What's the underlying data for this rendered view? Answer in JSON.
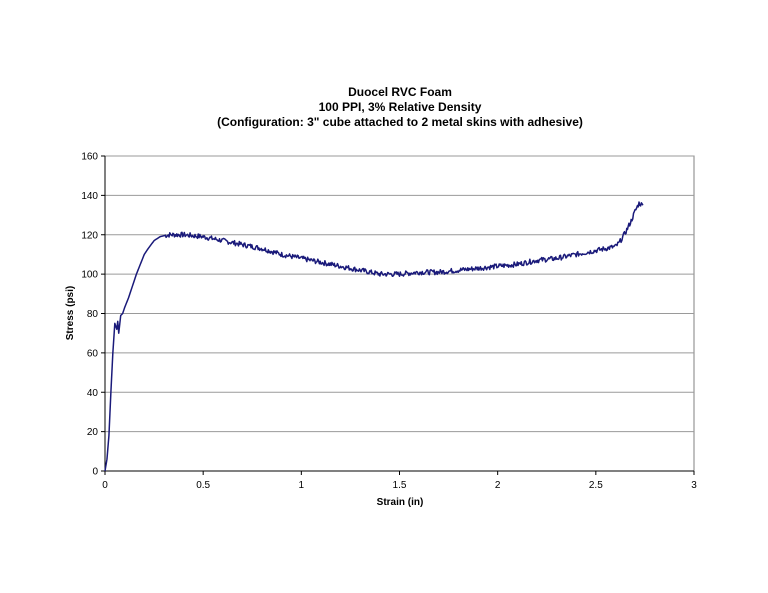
{
  "chart_data": {
    "type": "line",
    "title_lines": [
      "Duocel RVC Foam",
      "100 PPI, 3% Relative Density",
      "(Configuration: 3\" cube attached to 2 metal skins with adhesive)"
    ],
    "xlabel": "Strain (in)",
    "ylabel": "Stress (psi)",
    "xlim": [
      0,
      3
    ],
    "ylim": [
      0,
      160
    ],
    "x_ticks": [
      0,
      0.5,
      1,
      1.5,
      2,
      2.5,
      3
    ],
    "x_tick_labels": [
      "0",
      "0.5",
      "1",
      "1.5",
      "2",
      "2.5",
      "3"
    ],
    "y_ticks": [
      0,
      20,
      40,
      60,
      80,
      100,
      120,
      140,
      160
    ],
    "y_tick_labels": [
      "0",
      "20",
      "40",
      "60",
      "80",
      "100",
      "120",
      "140",
      "160"
    ],
    "grid": "horizontal",
    "line_color": "#1a1a7a",
    "series": [
      {
        "x": [
          0,
          0.01,
          0.02,
          0.03,
          0.04,
          0.05,
          0.06,
          0.065,
          0.07,
          0.08,
          0.09,
          0.1,
          0.12,
          0.14,
          0.16,
          0.18,
          0.2,
          0.22,
          0.25,
          0.28,
          0.3,
          0.33,
          0.35,
          0.4,
          0.45,
          0.5,
          0.55,
          0.6,
          0.7,
          0.8,
          0.9,
          1.0,
          1.1,
          1.2,
          1.3,
          1.4,
          1.5,
          1.6,
          1.7,
          1.8,
          1.9,
          2.0,
          2.1,
          2.2,
          2.3,
          2.4,
          2.5,
          2.55,
          2.6,
          2.62,
          2.65,
          2.68,
          2.7,
          2.72,
          2.74
        ],
        "y": [
          0,
          6,
          18,
          40,
          60,
          75,
          72,
          76,
          70,
          79,
          80,
          83,
          88,
          94,
          100,
          105,
          110,
          113,
          117,
          119,
          119.5,
          120,
          120,
          120,
          119.5,
          119,
          118,
          117,
          115,
          113,
          110,
          108,
          106,
          104,
          102,
          100,
          100,
          101,
          101,
          102,
          103,
          104,
          105,
          107,
          108,
          110,
          112,
          113,
          114,
          116,
          121,
          127,
          132,
          136,
          135
        ]
      }
    ]
  }
}
